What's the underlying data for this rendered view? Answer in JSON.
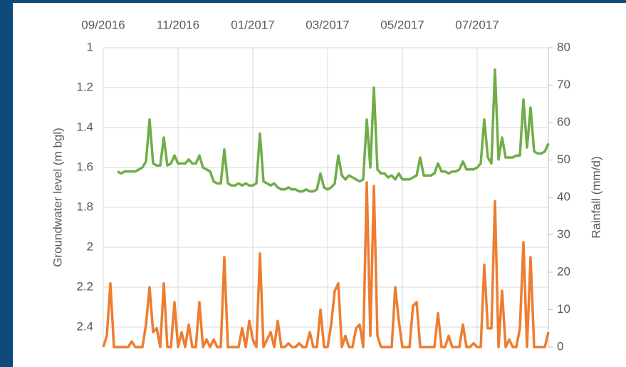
{
  "chart_data": {
    "type": "line",
    "y_label": "Groundwater level (m bgl)",
    "y2_label": "Rainfall (mm/d)",
    "categories": [
      "09/2016",
      null,
      null,
      null,
      null,
      null,
      null,
      null,
      null,
      null,
      null,
      null,
      null,
      null,
      null,
      null,
      null,
      null,
      null,
      null,
      null,
      "11/2016",
      null,
      null,
      null,
      null,
      null,
      null,
      null,
      null,
      null,
      null,
      null,
      null,
      null,
      null,
      null,
      null,
      null,
      null,
      null,
      null,
      "01/2017",
      null,
      null,
      null,
      null,
      null,
      null,
      null,
      null,
      null,
      null,
      null,
      null,
      null,
      null,
      null,
      null,
      null,
      null,
      null,
      null,
      "03/2017",
      null,
      null,
      null,
      null,
      null,
      null,
      null,
      null,
      null,
      null,
      null,
      null,
      null,
      null,
      null,
      null,
      null,
      null,
      null,
      null,
      "05/2017",
      null,
      null,
      null,
      null,
      null,
      null,
      null,
      null,
      null,
      null,
      null,
      null,
      null,
      null,
      null,
      null,
      null,
      null,
      null,
      null,
      "07/2017",
      null,
      null,
      null,
      null,
      null,
      null,
      null,
      null,
      null,
      null,
      null,
      null,
      null,
      null,
      null,
      null,
      null,
      null,
      null,
      null
    ],
    "series": [
      {
        "color": "#70ad47",
        "axis": "y",
        "values": [
          null,
          null,
          null,
          null,
          1.62,
          1.63,
          1.62,
          1.62,
          1.62,
          1.62,
          1.61,
          1.6,
          1.57,
          1.36,
          1.58,
          1.59,
          1.59,
          1.45,
          1.59,
          1.58,
          1.54,
          1.58,
          1.58,
          1.58,
          1.56,
          1.58,
          1.58,
          1.54,
          1.6,
          1.61,
          1.62,
          1.67,
          1.68,
          1.68,
          1.51,
          1.68,
          1.69,
          1.69,
          1.68,
          1.69,
          1.68,
          1.69,
          1.69,
          1.68,
          1.43,
          1.67,
          1.68,
          1.69,
          1.68,
          1.7,
          1.71,
          1.71,
          1.7,
          1.71,
          1.71,
          1.72,
          1.72,
          1.71,
          1.72,
          1.72,
          1.71,
          1.63,
          1.7,
          1.71,
          1.7,
          1.68,
          1.54,
          1.64,
          1.66,
          1.64,
          1.65,
          1.66,
          1.67,
          1.66,
          1.36,
          1.6,
          1.2,
          1.61,
          1.63,
          1.63,
          1.65,
          1.64,
          1.66,
          1.63,
          1.66,
          1.66,
          1.66,
          1.65,
          1.64,
          1.55,
          1.64,
          1.64,
          1.64,
          1.63,
          1.58,
          1.62,
          1.62,
          1.63,
          1.62,
          1.62,
          1.61,
          1.57,
          1.61,
          1.61,
          1.61,
          1.6,
          1.58,
          1.36,
          1.55,
          1.58,
          1.11,
          1.56,
          1.45,
          1.55,
          1.55,
          1.55,
          1.54,
          1.54,
          1.26,
          1.5,
          1.3,
          1.52,
          1.53,
          1.53,
          1.52,
          1.48
        ]
      },
      {
        "color": "#ed7d31",
        "axis": "y2",
        "values": [
          0,
          3,
          17,
          0,
          0,
          0,
          0,
          0,
          1.5,
          0,
          0,
          0,
          6,
          16,
          4,
          5,
          0,
          17,
          0,
          0,
          12,
          0,
          4,
          0,
          6,
          0,
          0,
          12,
          0,
          2,
          0,
          2,
          0,
          0,
          24,
          0,
          0,
          0,
          0,
          5,
          0,
          7,
          2,
          0,
          25,
          0,
          2,
          4,
          0,
          7,
          0,
          0,
          1,
          0,
          0,
          1,
          0,
          0,
          4,
          0,
          0,
          10,
          0,
          0,
          6,
          15,
          17,
          0,
          3,
          0,
          0,
          5,
          6,
          0,
          44,
          3,
          43,
          3,
          0,
          0,
          0,
          0,
          16,
          7,
          0,
          0,
          0,
          11,
          12,
          0,
          0,
          0,
          0,
          0,
          9,
          0,
          0,
          3,
          0,
          0,
          0,
          6,
          0,
          0,
          1,
          0,
          0,
          22,
          5,
          5,
          39,
          0,
          15,
          0,
          2,
          0,
          0,
          5,
          28,
          0,
          24,
          0,
          0,
          0,
          0,
          4
        ]
      }
    ],
    "ylim": [
      2.5,
      1
    ],
    "yticks": [
      1,
      1.2,
      1.4,
      1.6,
      1.8,
      2,
      2.2,
      2.4
    ],
    "y2lim": [
      0,
      80
    ],
    "y2ticks": [
      0,
      10,
      20,
      30,
      40,
      50,
      60,
      70,
      80
    ],
    "grid": true
  }
}
